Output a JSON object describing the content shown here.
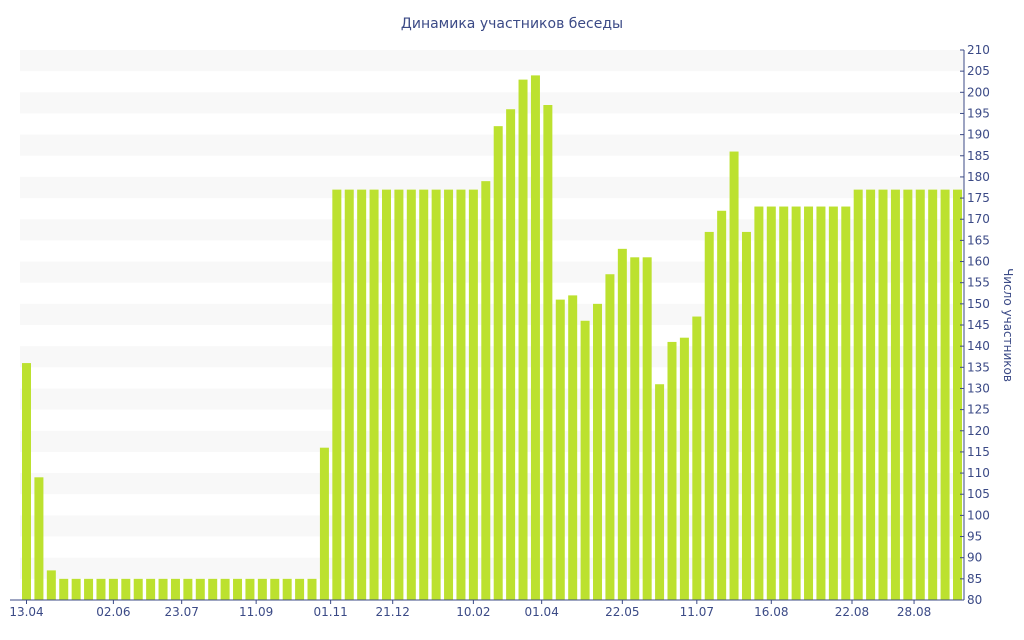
{
  "chart_data": {
    "type": "bar",
    "title": "Динамика участников беседы",
    "ylabel": "Число участников",
    "ylim": [
      80,
      210
    ],
    "y_ticks": [
      80,
      85,
      90,
      95,
      100,
      105,
      110,
      115,
      120,
      125,
      130,
      135,
      140,
      145,
      150,
      155,
      160,
      165,
      170,
      175,
      180,
      185,
      190,
      195,
      200,
      205,
      210
    ],
    "x_tick_labels": [
      {
        "label": "13.04",
        "index": 0
      },
      {
        "label": "02.06",
        "index": 7
      },
      {
        "label": "23.07",
        "index": 12.5
      },
      {
        "label": "11.09",
        "index": 18.5
      },
      {
        "label": "01.11",
        "index": 24.5
      },
      {
        "label": "21.12",
        "index": 29.5
      },
      {
        "label": "10.02",
        "index": 36
      },
      {
        "label": "01.04",
        "index": 41.5
      },
      {
        "label": "22.05",
        "index": 48
      },
      {
        "label": "11.07",
        "index": 54
      },
      {
        "label": "16.08",
        "index": 60
      },
      {
        "label": "22.08",
        "index": 66.5
      },
      {
        "label": "28.08",
        "index": 71.5
      }
    ],
    "values": [
      136,
      109,
      87,
      85,
      85,
      85,
      85,
      85,
      85,
      85,
      85,
      85,
      85,
      85,
      85,
      85,
      85,
      85,
      85,
      85,
      85,
      85,
      85,
      85,
      116,
      177,
      177,
      177,
      177,
      177,
      177,
      177,
      177,
      177,
      177,
      177,
      177,
      179,
      192,
      196,
      203,
      204,
      197,
      151,
      152,
      146,
      150,
      157,
      163,
      161,
      161,
      131,
      141,
      142,
      147,
      167,
      172,
      186,
      167,
      173,
      173,
      173,
      173,
      173,
      173,
      173,
      173,
      177,
      177,
      177,
      177,
      177,
      177,
      177,
      177,
      177
    ],
    "bar_color": "#bce12f",
    "band_color": "#f8f8f8",
    "text_color": "#3b4a86",
    "axis_color": "#3b4a86",
    "grid": "alternating horizontal bands",
    "y_axis_position": "right"
  }
}
